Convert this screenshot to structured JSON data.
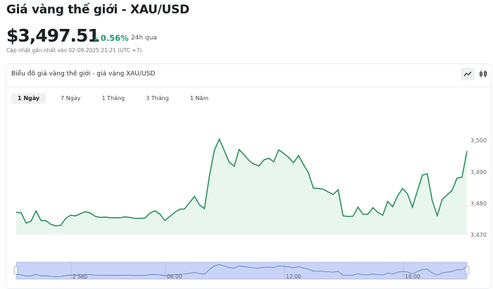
{
  "header": {
    "title": "Giá vàng thế giới - XAU/USD",
    "price": "$3,497.51",
    "change": "▴ 0.56%",
    "period": "24h qua",
    "updated": "Cập nhật gần nhất vào 02-09-2025 21:21 (UTC +7)"
  },
  "card": {
    "title": "Biểu đồ giá vàng thế giới - giá vàng XAU/USD",
    "icons": [
      "line-chart-icon",
      "candlestick-icon"
    ],
    "tabs": [
      {
        "label": "1 Ngày",
        "active": true
      },
      {
        "label": "7 Ngày"
      },
      {
        "label": "1 Tháng"
      },
      {
        "label": "3 Tháng"
      },
      {
        "label": "1 Năm"
      }
    ]
  },
  "colors": {
    "line": "#1f8a55",
    "fill": "#e9f6ee",
    "up": "#17a06a",
    "navigator": "#c9d3f7"
  },
  "chart_data": {
    "type": "area",
    "ylim": [
      3470,
      3502
    ],
    "yticks": [
      3470,
      3480,
      3490,
      3500
    ],
    "ytick_labels": [
      "3,470",
      "3,480",
      "3,490",
      "3,500"
    ],
    "navigator_labels": [
      "2 Sep",
      "06:00",
      "12:00",
      "18:00"
    ],
    "values": [
      3477.1,
      3477,
      3473.7,
      3474.3,
      3477.6,
      3474.5,
      3474.5,
      3473.3,
      3472.8,
      3473,
      3475.2,
      3476.2,
      3476,
      3476.7,
      3477.3,
      3476.9,
      3475.8,
      3475.5,
      3475.6,
      3475.4,
      3475.4,
      3475.4,
      3475.7,
      3475.5,
      3475.2,
      3475.2,
      3475.3,
      3476.9,
      3477.6,
      3476.6,
      3474.5,
      3475.8,
      3477.1,
      3478.1,
      3478.2,
      3480.2,
      3482.2,
      3479.5,
      3478.3,
      3488.6,
      3496.8,
      3500.4,
      3496.8,
      3493.1,
      3491.8,
      3497.1,
      3495.5,
      3493.6,
      3492.5,
      3491.9,
      3493.8,
      3494.3,
      3493.2,
      3497,
      3495.9,
      3494.6,
      3492.9,
      3495.2,
      3492.3,
      3489.7,
      3484.8,
      3484.7,
      3484.5,
      3483.6,
      3482.8,
      3484.3,
      3476,
      3475.8,
      3475.9,
      3478.8,
      3476.5,
      3476.5,
      3478.6,
      3477.1,
      3476.2,
      3480.6,
      3478.9,
      3482.3,
      3484.7,
      3483,
      3478.8,
      3484,
      3489,
      3489.4,
      3480.8,
      3476.1,
      3481.2,
      3482.7,
      3484.1,
      3488,
      3488.3,
      3496.6
    ]
  }
}
